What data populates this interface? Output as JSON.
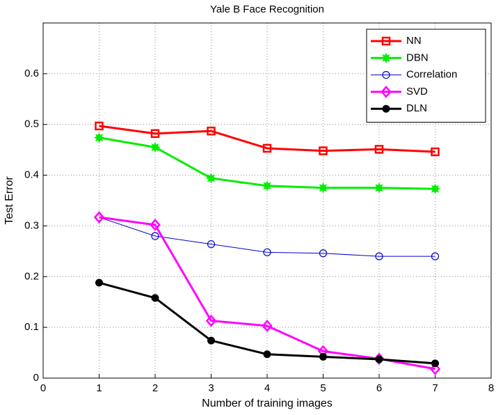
{
  "chart_data": {
    "type": "line",
    "title": "Yale B Face Recognition",
    "x_label": "Number of training images",
    "y_label": "Test Error",
    "x": [
      1,
      2,
      3,
      4,
      5,
      6,
      7
    ],
    "xlim": [
      0,
      8
    ],
    "xticks": [
      0,
      1,
      2,
      3,
      4,
      5,
      6,
      7,
      8
    ],
    "ylim": [
      0,
      0.7
    ],
    "yticks": [
      0,
      0.1,
      0.2,
      0.3,
      0.4,
      0.5,
      0.6
    ],
    "grid": true,
    "legend": "upper right",
    "series": [
      {
        "name": "NN",
        "color": "#ff0000",
        "marker": "square",
        "linewidth": 3,
        "values": [
          0.497,
          0.482,
          0.487,
          0.453,
          0.448,
          0.451,
          0.446
        ]
      },
      {
        "name": "DBN",
        "color": "#00ee00",
        "marker": "star",
        "linewidth": 3,
        "values": [
          0.474,
          0.455,
          0.394,
          0.379,
          0.375,
          0.375,
          0.373
        ]
      },
      {
        "name": "Correlation",
        "color": "#0000cc",
        "marker": "circle",
        "linewidth": 1,
        "values": [
          0.317,
          0.28,
          0.264,
          0.248,
          0.246,
          0.24,
          0.24
        ]
      },
      {
        "name": "SVD",
        "color": "#ff00ff",
        "marker": "diamond",
        "linewidth": 3,
        "values": [
          0.317,
          0.302,
          0.113,
          0.103,
          0.053,
          0.038,
          0.018
        ]
      },
      {
        "name": "DLN",
        "color": "#000000",
        "marker": "dot",
        "linewidth": 3,
        "values": [
          0.188,
          0.158,
          0.074,
          0.047,
          0.042,
          0.037,
          0.029
        ]
      }
    ]
  }
}
